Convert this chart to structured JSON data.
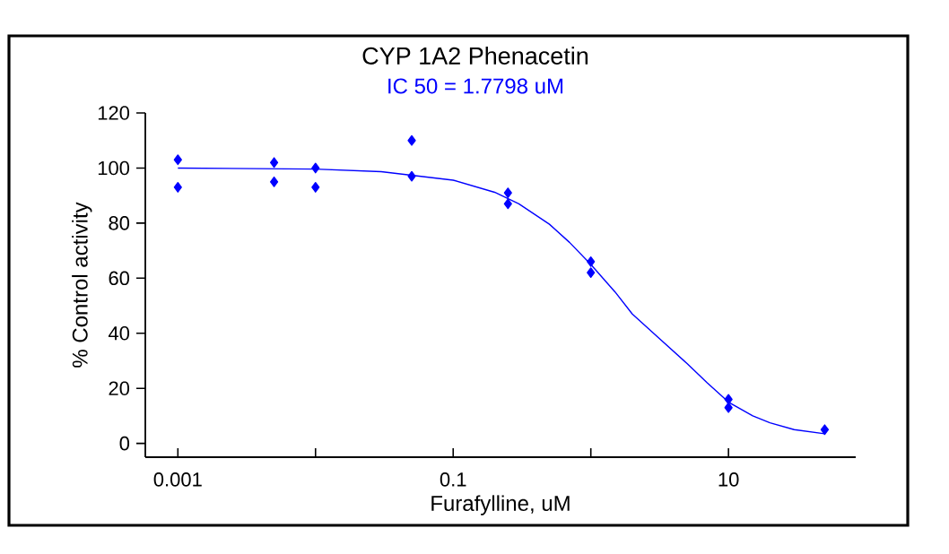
{
  "chart_data": {
    "type": "scatter",
    "title": "CYP 1A2 Phenacetin",
    "subtitle": "IC 50 = 1.7798 uM",
    "xlabel": "Furafylline, uM",
    "ylabel": "% Control activity",
    "log": "x",
    "marker": "diamond",
    "xlim": [
      0.00058,
      84
    ],
    "xticks": [
      0.001,
      {
        "value": 0.01,
        "label": null
      },
      0.1,
      {
        "value": 1,
        "label": null
      },
      10
    ],
    "ylim": [
      -5,
      120
    ],
    "yticks": [
      0,
      20,
      40,
      60,
      80,
      100,
      120
    ],
    "series": [
      {
        "color": "#0000ff",
        "x": [
          0.001,
          0.001,
          0.005,
          0.005,
          0.01,
          0.01,
          0.05,
          0.05,
          0.25,
          0.25,
          1,
          1,
          10,
          10,
          50
        ],
        "values": [
          103,
          93,
          102,
          95,
          100,
          93,
          110,
          97,
          91,
          87,
          66,
          62,
          16,
          13,
          5
        ]
      },
      {
        "type": "line",
        "marker": "none",
        "color": "#0000ff",
        "x": [
          0.001,
          0.01,
          0.03,
          0.1,
          0.2,
          0.3,
          0.5,
          0.7,
          1,
          1.5,
          2,
          3,
          5,
          7,
          10,
          15,
          20,
          30,
          50
        ],
        "values": [
          100,
          99.6,
          98.7,
          95.6,
          91.2,
          87,
          79.6,
          73,
          65,
          55,
          47,
          39,
          29,
          22,
          15,
          10,
          7.5,
          5,
          3.5
        ]
      }
    ]
  }
}
